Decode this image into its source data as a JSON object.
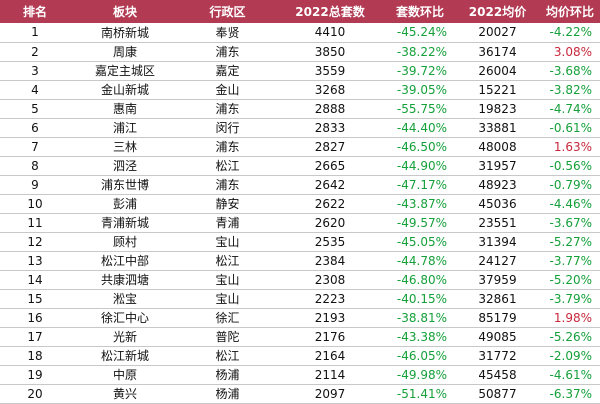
{
  "table": {
    "headers": [
      "排名",
      "板块",
      "行政区",
      "2022总套数",
      "套数环比",
      "2022均价",
      "均价环比"
    ],
    "rows": [
      {
        "rank": "1",
        "block": "南桥新城",
        "district": "奉贤",
        "total": "4410",
        "count_chg": "-45.24%",
        "avg_price": "20027",
        "price_chg": "-4.22%"
      },
      {
        "rank": "2",
        "block": "周康",
        "district": "浦东",
        "total": "3850",
        "count_chg": "-38.22%",
        "avg_price": "36174",
        "price_chg": "3.08%"
      },
      {
        "rank": "3",
        "block": "嘉定主城区",
        "district": "嘉定",
        "total": "3559",
        "count_chg": "-39.72%",
        "avg_price": "26004",
        "price_chg": "-3.68%"
      },
      {
        "rank": "4",
        "block": "金山新城",
        "district": "金山",
        "total": "3268",
        "count_chg": "-39.05%",
        "avg_price": "15221",
        "price_chg": "-3.82%"
      },
      {
        "rank": "5",
        "block": "惠南",
        "district": "浦东",
        "total": "2888",
        "count_chg": "-55.75%",
        "avg_price": "19823",
        "price_chg": "-4.74%"
      },
      {
        "rank": "6",
        "block": "浦江",
        "district": "闵行",
        "total": "2833",
        "count_chg": "-44.40%",
        "avg_price": "33881",
        "price_chg": "-0.61%"
      },
      {
        "rank": "7",
        "block": "三林",
        "district": "浦东",
        "total": "2827",
        "count_chg": "-46.50%",
        "avg_price": "48008",
        "price_chg": "1.63%"
      },
      {
        "rank": "8",
        "block": "泗泾",
        "district": "松江",
        "total": "2665",
        "count_chg": "-44.90%",
        "avg_price": "31957",
        "price_chg": "-0.56%"
      },
      {
        "rank": "9",
        "block": "浦东世博",
        "district": "浦东",
        "total": "2642",
        "count_chg": "-47.17%",
        "avg_price": "48923",
        "price_chg": "-0.79%"
      },
      {
        "rank": "10",
        "block": "彭浦",
        "district": "静安",
        "total": "2622",
        "count_chg": "-43.87%",
        "avg_price": "45036",
        "price_chg": "-4.46%"
      },
      {
        "rank": "11",
        "block": "青浦新城",
        "district": "青浦",
        "total": "2620",
        "count_chg": "-49.57%",
        "avg_price": "23551",
        "price_chg": "-3.67%"
      },
      {
        "rank": "12",
        "block": "顾村",
        "district": "宝山",
        "total": "2535",
        "count_chg": "-45.05%",
        "avg_price": "31394",
        "price_chg": "-5.27%"
      },
      {
        "rank": "13",
        "block": "松江中部",
        "district": "松江",
        "total": "2384",
        "count_chg": "-44.78%",
        "avg_price": "24127",
        "price_chg": "-3.77%"
      },
      {
        "rank": "14",
        "block": "共康泗塘",
        "district": "宝山",
        "total": "2308",
        "count_chg": "-46.80%",
        "avg_price": "37959",
        "price_chg": "-5.20%"
      },
      {
        "rank": "15",
        "block": "淞宝",
        "district": "宝山",
        "total": "2223",
        "count_chg": "-40.15%",
        "avg_price": "32861",
        "price_chg": "-3.79%"
      },
      {
        "rank": "16",
        "block": "徐汇中心",
        "district": "徐汇",
        "total": "2193",
        "count_chg": "-38.81%",
        "avg_price": "85179",
        "price_chg": "1.98%"
      },
      {
        "rank": "17",
        "block": "光新",
        "district": "普陀",
        "total": "2176",
        "count_chg": "-43.38%",
        "avg_price": "49085",
        "price_chg": "-5.26%"
      },
      {
        "rank": "18",
        "block": "松江新城",
        "district": "松江",
        "total": "2164",
        "count_chg": "-46.05%",
        "avg_price": "31772",
        "price_chg": "-2.09%"
      },
      {
        "rank": "19",
        "block": "中原",
        "district": "杨浦",
        "total": "2114",
        "count_chg": "-49.98%",
        "avg_price": "45458",
        "price_chg": "-4.61%"
      },
      {
        "rank": "20",
        "block": "黄兴",
        "district": "杨浦",
        "total": "2097",
        "count_chg": "-51.41%",
        "avg_price": "50877",
        "price_chg": "-6.37%"
      }
    ]
  },
  "colors": {
    "header_bg": "#b23a52",
    "header_text": "#ffffff",
    "negative_change": "#15a03a",
    "positive_change": "#c8283c"
  }
}
